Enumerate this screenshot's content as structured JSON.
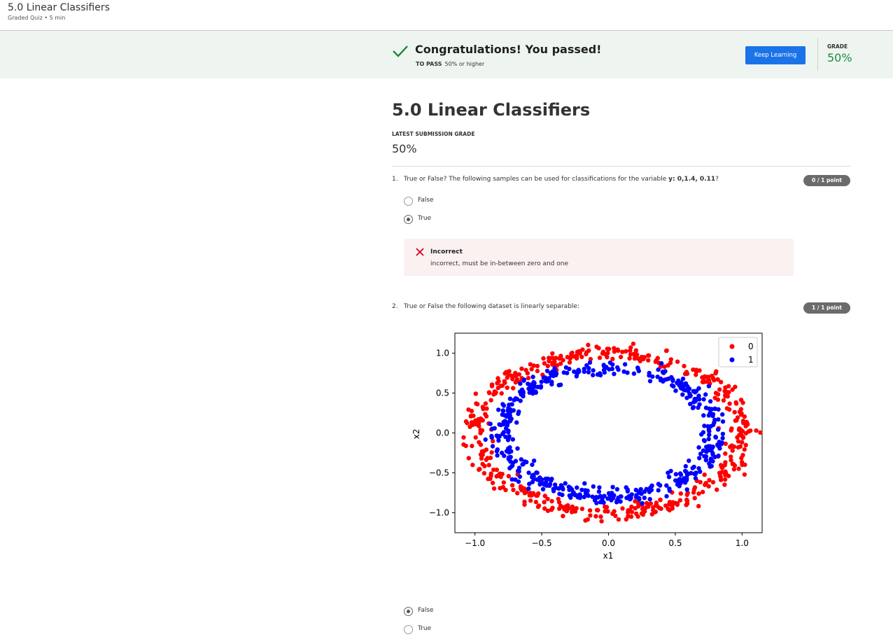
{
  "header": {
    "title": "5.0 Linear Classifiers",
    "subtitle": "Graded Quiz • 5 min"
  },
  "banner": {
    "message": "Congratulations! You passed!",
    "to_pass_label": "TO PASS",
    "to_pass_value": "50% or higher",
    "button_label": "Keep Learning",
    "grade_label": "GRADE",
    "grade_value": "50%",
    "grade_color": "#1e8a3c",
    "bg_color": "#eef5f1"
  },
  "main": {
    "title": "5.0 Linear Classifiers",
    "latest_label": "LATEST SUBMISSION GRADE",
    "latest_value": "50%"
  },
  "questions": [
    {
      "number": "1.",
      "text_before": "True or False? The following samples can be used for classifications for the variable ",
      "text_bold": "y: 0,1.4,  0.11",
      "text_after": "?",
      "points": "0 / 1 point",
      "options": [
        {
          "label": "False",
          "selected": false
        },
        {
          "label": "True",
          "selected": true
        }
      ],
      "feedback": {
        "status": "Incorrect",
        "text": "incorrect, must be in-between zero and one",
        "icon": "x-icon"
      }
    },
    {
      "number": "2.",
      "text": "True or False the following dataset is linearly separable:",
      "points": "1 / 1 point",
      "options": [
        {
          "label": "False",
          "selected": true
        },
        {
          "label": "True",
          "selected": false
        }
      ]
    }
  ],
  "chart_data": {
    "type": "scatter",
    "xlabel": "x1",
    "ylabel": "x2",
    "xlim": [
      -1.15,
      1.15
    ],
    "ylim": [
      -1.25,
      1.25
    ],
    "xticks": [
      "−1.0",
      "−0.5",
      "0.0",
      "0.5",
      "1.0"
    ],
    "xtick_values": [
      -1.0,
      -0.5,
      0.0,
      0.5,
      1.0
    ],
    "yticks": [
      "1.0",
      "0.5",
      "0.0",
      "−0.5",
      "−1.0"
    ],
    "ytick_values": [
      1.0,
      0.5,
      0.0,
      -0.5,
      -1.0
    ],
    "legend_position": "top-right",
    "series": [
      {
        "name": "0",
        "color": "#ff0000",
        "shape": "ring",
        "radius_mean": 1.0,
        "radius_spread": 0.1,
        "count": 500
      },
      {
        "name": "1",
        "color": "#0000ff",
        "shape": "ring",
        "radius_mean": 0.8,
        "radius_spread": 0.1,
        "count": 500
      }
    ]
  }
}
